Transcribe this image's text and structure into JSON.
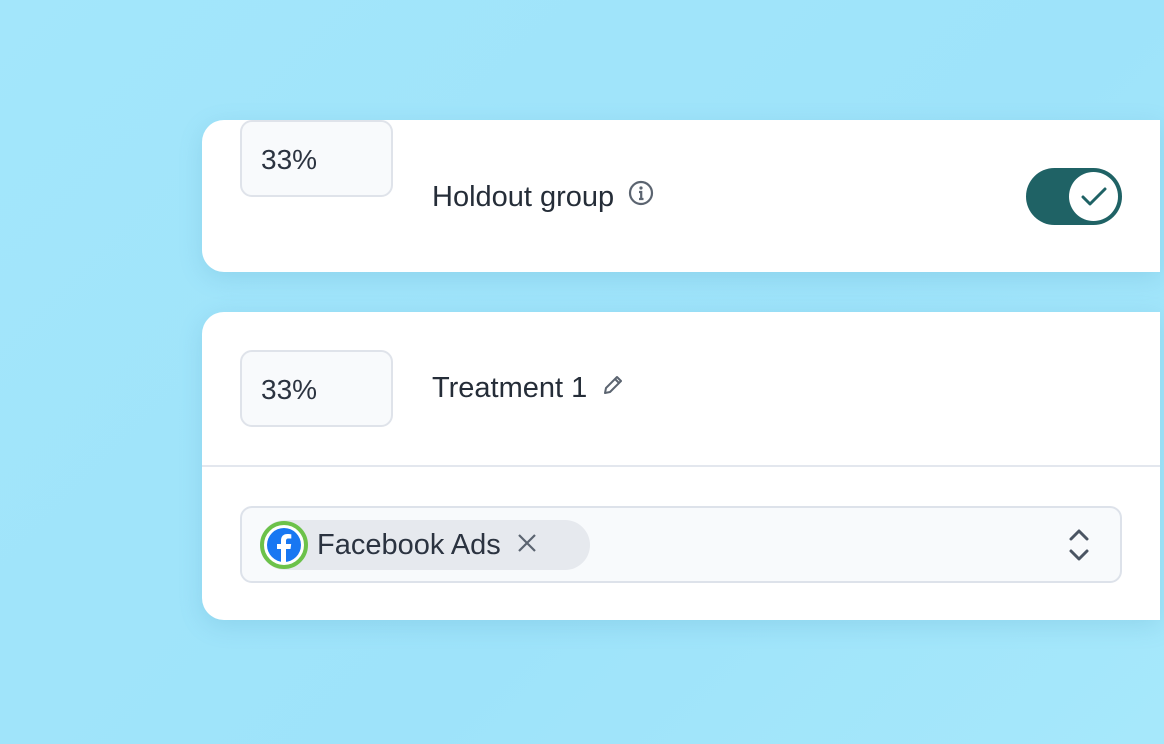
{
  "holdout": {
    "percent": "33%",
    "label": "Holdout group",
    "enabled": true,
    "info_icon": "info-icon"
  },
  "treatment": {
    "percent": "33%",
    "label": "Treatment 1",
    "edit_icon": "pencil-icon",
    "channels": [
      {
        "label": "Facebook Ads",
        "icon": "facebook-icon"
      }
    ]
  },
  "colors": {
    "toggle_on": "#1f6265",
    "background": "#a3e6fb",
    "chip_ring": "#6cc24a",
    "facebook": "#1877f2"
  }
}
